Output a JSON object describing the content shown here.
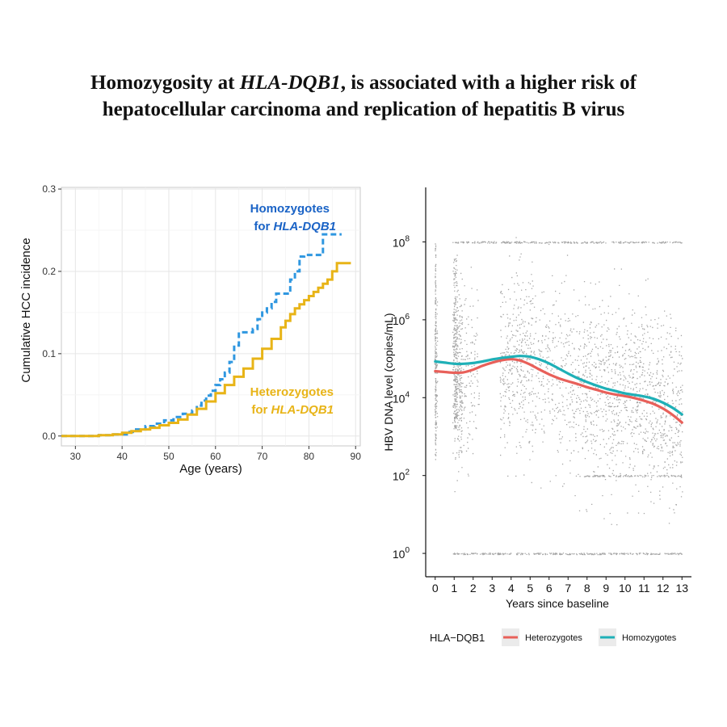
{
  "page": {
    "title_line1_pre": "Homozygosity at ",
    "title_line1_gene": "HLA-DQB1",
    "title_line1_post": ", is associated with a higher risk of",
    "title_line2": "hepatocellular carcinoma and replication of hepatitis B virus"
  },
  "chart_data": [
    {
      "type": "line",
      "subtype": "step",
      "xlabel": "Age (years)",
      "ylabel": "Cumulative HCC incidence",
      "xlim": [
        27,
        91
      ],
      "ylim": [
        -0.012,
        0.302
      ],
      "xticks": [
        30,
        40,
        50,
        60,
        70,
        80,
        90
      ],
      "yticks": [
        0.0,
        0.1,
        0.2,
        0.3
      ],
      "ytick_labels": [
        "0.0",
        "0.1",
        "0.2",
        "0.3"
      ],
      "grid": true,
      "annotations": [
        {
          "line1": "Homozygotes",
          "line2_pre": "for ",
          "line2_gene": "HLA-DQB1",
          "color": "#1a63c6"
        },
        {
          "line1": "Heterozygotes",
          "line2_pre": "for ",
          "line2_gene": "HLA-DQB1",
          "color": "#e8b417"
        }
      ],
      "series": [
        {
          "name": "Homozygotes",
          "color": "#2f97e0",
          "style": "dashed",
          "x": [
            27,
            35,
            38,
            41,
            43,
            45,
            47,
            49,
            51,
            53,
            55,
            56,
            57,
            58,
            59,
            60,
            61,
            62,
            63,
            64,
            65,
            68,
            69,
            70,
            71,
            72,
            73,
            74,
            76,
            77,
            78,
            79,
            82,
            83,
            86,
            87
          ],
          "y": [
            0.0,
            0.001,
            0.002,
            0.005,
            0.008,
            0.012,
            0.015,
            0.019,
            0.023,
            0.027,
            0.031,
            0.037,
            0.043,
            0.049,
            0.055,
            0.062,
            0.069,
            0.077,
            0.09,
            0.11,
            0.126,
            0.13,
            0.142,
            0.15,
            0.155,
            0.163,
            0.173,
            0.173,
            0.19,
            0.2,
            0.218,
            0.22,
            0.22,
            0.245,
            0.245,
            0.245
          ]
        },
        {
          "name": "Heterozygotes",
          "color": "#e8b417",
          "style": "solid",
          "x": [
            27,
            35,
            38,
            40,
            42,
            44,
            46,
            48,
            50,
            52,
            54,
            56,
            58,
            60,
            62,
            64,
            66,
            68,
            70,
            72,
            74,
            75,
            76,
            77,
            78,
            79,
            80,
            81,
            82,
            83,
            84,
            85,
            86,
            87,
            88,
            89
          ],
          "y": [
            0.0,
            0.001,
            0.002,
            0.004,
            0.006,
            0.008,
            0.01,
            0.013,
            0.016,
            0.02,
            0.026,
            0.033,
            0.042,
            0.052,
            0.062,
            0.072,
            0.082,
            0.094,
            0.106,
            0.118,
            0.132,
            0.14,
            0.148,
            0.155,
            0.16,
            0.165,
            0.17,
            0.175,
            0.18,
            0.185,
            0.19,
            0.2,
            0.21,
            0.21,
            0.21,
            0.21
          ]
        }
      ]
    },
    {
      "type": "scatter",
      "overlay": "smooth-line",
      "xlabel": "Years since baseline",
      "ylabel": "HBV DNA level (copies/mL)",
      "xlim": [
        -0.5,
        13.5
      ],
      "ylim_log10": [
        -0.6,
        9.4
      ],
      "xticks": [
        0,
        1,
        2,
        3,
        4,
        5,
        6,
        7,
        8,
        9,
        10,
        11,
        12,
        13
      ],
      "yticks_log10": [
        0,
        2,
        4,
        6,
        8
      ],
      "ytick_base": "10",
      "grid": false,
      "legend": {
        "title": "HLA−DQB1",
        "position": "bottom",
        "entries": [
          "Heterozygotes",
          "Homozygotes"
        ]
      },
      "series": [
        {
          "name": "Heterozygotes",
          "color": "#e8605a",
          "x": [
            0,
            0.5,
            1,
            1.5,
            2,
            2.5,
            3,
            3.5,
            4,
            4.5,
            5,
            5.5,
            6,
            6.5,
            7,
            7.5,
            8,
            8.5,
            9,
            9.5,
            10,
            10.5,
            11,
            11.5,
            12,
            12.5,
            13
          ],
          "y_log10": [
            4.68,
            4.66,
            4.64,
            4.65,
            4.72,
            4.82,
            4.9,
            4.96,
            4.99,
            4.95,
            4.85,
            4.72,
            4.6,
            4.5,
            4.42,
            4.35,
            4.27,
            4.2,
            4.13,
            4.08,
            4.04,
            3.99,
            3.92,
            3.84,
            3.72,
            3.56,
            3.36
          ]
        },
        {
          "name": "Homozygotes",
          "color": "#1fb0b7",
          "x": [
            0,
            0.5,
            1,
            1.5,
            2,
            2.5,
            3,
            3.5,
            4,
            4.5,
            5,
            5.5,
            6,
            6.5,
            7,
            7.5,
            8,
            8.5,
            9,
            9.5,
            10,
            10.5,
            11,
            11.5,
            12,
            12.5,
            13
          ],
          "y_log10": [
            4.93,
            4.9,
            4.87,
            4.87,
            4.89,
            4.93,
            4.98,
            5.02,
            5.05,
            5.07,
            5.05,
            4.98,
            4.88,
            4.75,
            4.62,
            4.5,
            4.4,
            4.31,
            4.23,
            4.17,
            4.11,
            4.07,
            4.03,
            3.97,
            3.87,
            3.74,
            3.57
          ]
        }
      ]
    }
  ]
}
